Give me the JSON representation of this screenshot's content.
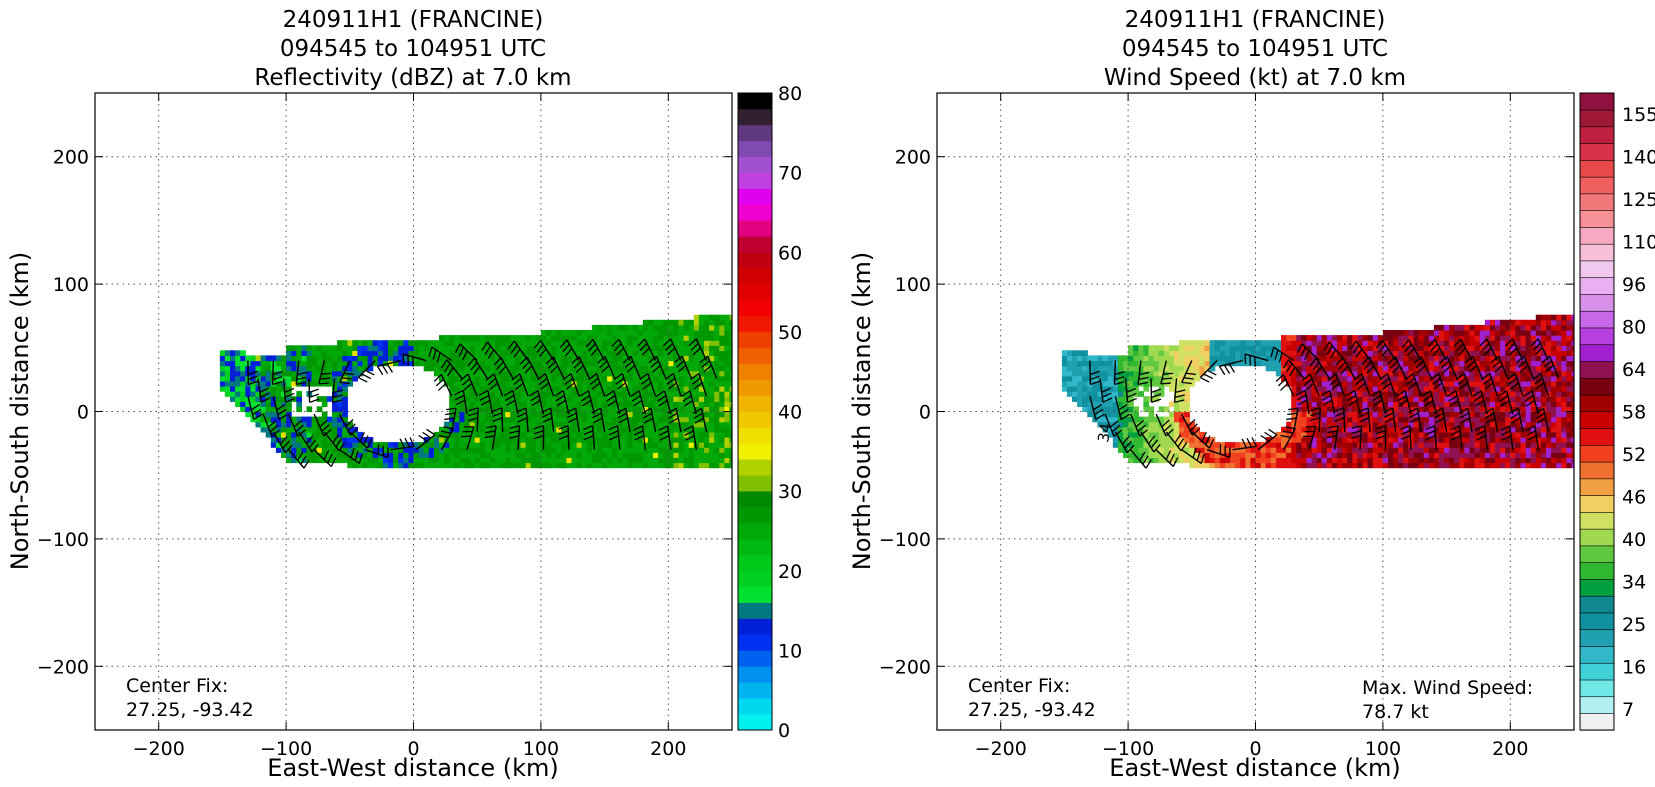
{
  "chart_data": [
    {
      "type": "heatmap",
      "title_lines": [
        "240911H1 (FRANCINE)",
        "094545 to 104951 UTC",
        "Reflectivity (dBZ) at 7.0 km"
      ],
      "xlabel": "East-West distance (km)",
      "ylabel": "North-South distance (km)",
      "xlim": [
        -250,
        250
      ],
      "ylim": [
        -250,
        250
      ],
      "xticks": [
        -200,
        -100,
        0,
        100,
        200
      ],
      "yticks": [
        -200,
        -100,
        0,
        100,
        200
      ],
      "xtick_labels": [
        "−200",
        "−100",
        "0",
        "100",
        "200"
      ],
      "ytick_labels": [
        "−200",
        "−100",
        "0",
        "100",
        "200"
      ],
      "grid": true,
      "annotations": [
        {
          "text": "Center Fix:",
          "location": "bottom-left"
        },
        {
          "text": "27.25, -93.42",
          "location": "bottom-left"
        }
      ],
      "colorbar": {
        "range": [
          0,
          80
        ],
        "tick_values": [
          0,
          10,
          20,
          30,
          40,
          50,
          60,
          70,
          80
        ],
        "tick_labels": [
          "0",
          "10",
          "20",
          "30",
          "40",
          "50",
          "60",
          "70",
          "80"
        ],
        "colors": [
          "#00f0f0",
          "#00d8f0",
          "#00b4f0",
          "#0090f0",
          "#0060f0",
          "#0030f0",
          "#0020d8",
          "#007880",
          "#00e030",
          "#00d020",
          "#00c818",
          "#00b810",
          "#00a808",
          "#009800",
          "#008800",
          "#80c000",
          "#b0d000",
          "#f0f000",
          "#f0e000",
          "#f0c800",
          "#f0b400",
          "#f09800",
          "#f08000",
          "#f06000",
          "#f04000",
          "#f01800",
          "#f00000",
          "#e00000",
          "#d00000",
          "#c00010",
          "#c00030",
          "#e00080",
          "#f000d0",
          "#e000f0",
          "#c040e0",
          "#a050d0",
          "#804ab0",
          "#603880",
          "#302030",
          "#000000"
        ]
      },
      "field": {
        "description_units": "dBZ",
        "eye_center": [
          -10,
          5
        ],
        "swath_x_range": [
          -150,
          250
        ],
        "swath_y_range": [
          -45,
          70
        ],
        "dominant_value": 26,
        "weak_band_value": 13,
        "weak_band_location": "western eyewall and west edge",
        "spot_max": 38
      },
      "wind_barbs": true
    },
    {
      "type": "heatmap",
      "title_lines": [
        "240911H1 (FRANCINE)",
        "094545 to 104951 UTC",
        "Wind Speed (kt) at 7.0 km"
      ],
      "xlabel": "East-West distance (km)",
      "ylabel": "North-South distance (km)",
      "xlim": [
        -250,
        250
      ],
      "ylim": [
        -250,
        250
      ],
      "xticks": [
        -200,
        -100,
        0,
        100,
        200
      ],
      "yticks": [
        -200,
        -100,
        0,
        100,
        200
      ],
      "xtick_labels": [
        "−200",
        "−100",
        "0",
        "100",
        "200"
      ],
      "ytick_labels": [
        "−200",
        "−100",
        "0",
        "100",
        "200"
      ],
      "grid": true,
      "annotations": [
        {
          "text": "Center Fix:",
          "location": "bottom-left"
        },
        {
          "text": "27.25, -93.42",
          "location": "bottom-left"
        },
        {
          "text": "Max. Wind Speed:",
          "location": "bottom-right"
        },
        {
          "text": "78.7 kt",
          "location": "bottom-right"
        }
      ],
      "contour_labels": [
        "34"
      ],
      "colorbar": {
        "levels": 29,
        "tick_labels": [
          "7",
          "16",
          "25",
          "34",
          "40",
          "46",
          "52",
          "58",
          "64",
          "80",
          "96",
          "110",
          "125",
          "140",
          "155"
        ],
        "colors": [
          "#f0f0f0",
          "#b0f0f0",
          "#70e8e8",
          "#40d0d8",
          "#30b8c8",
          "#20a0b0",
          "#1090a0",
          "#108890",
          "#00a040",
          "#30b830",
          "#60c840",
          "#a0d850",
          "#d0e060",
          "#f0d060",
          "#f0a040",
          "#f07030",
          "#f04020",
          "#e01010",
          "#c80000",
          "#a00000",
          "#780010",
          "#901050",
          "#a020d0",
          "#b840e0",
          "#c868e8",
          "#d890e8",
          "#e8b0f0",
          "#f0c8f0",
          "#f8c0d8"
        ],
        "upper_colors": [
          "#f8a8c0",
          "#f89098",
          "#f07878",
          "#f06060",
          "#e84848",
          "#d83048",
          "#c02040",
          "#a01838",
          "#901040"
        ]
      },
      "field": {
        "description_units": "kt",
        "eye_center": [
          -10,
          5
        ],
        "swath_x_range": [
          -150,
          250
        ],
        "swath_y_range": [
          -45,
          65
        ],
        "max_value": 78.7,
        "west_value": 25,
        "east_value": 70
      },
      "wind_barbs": true
    }
  ]
}
